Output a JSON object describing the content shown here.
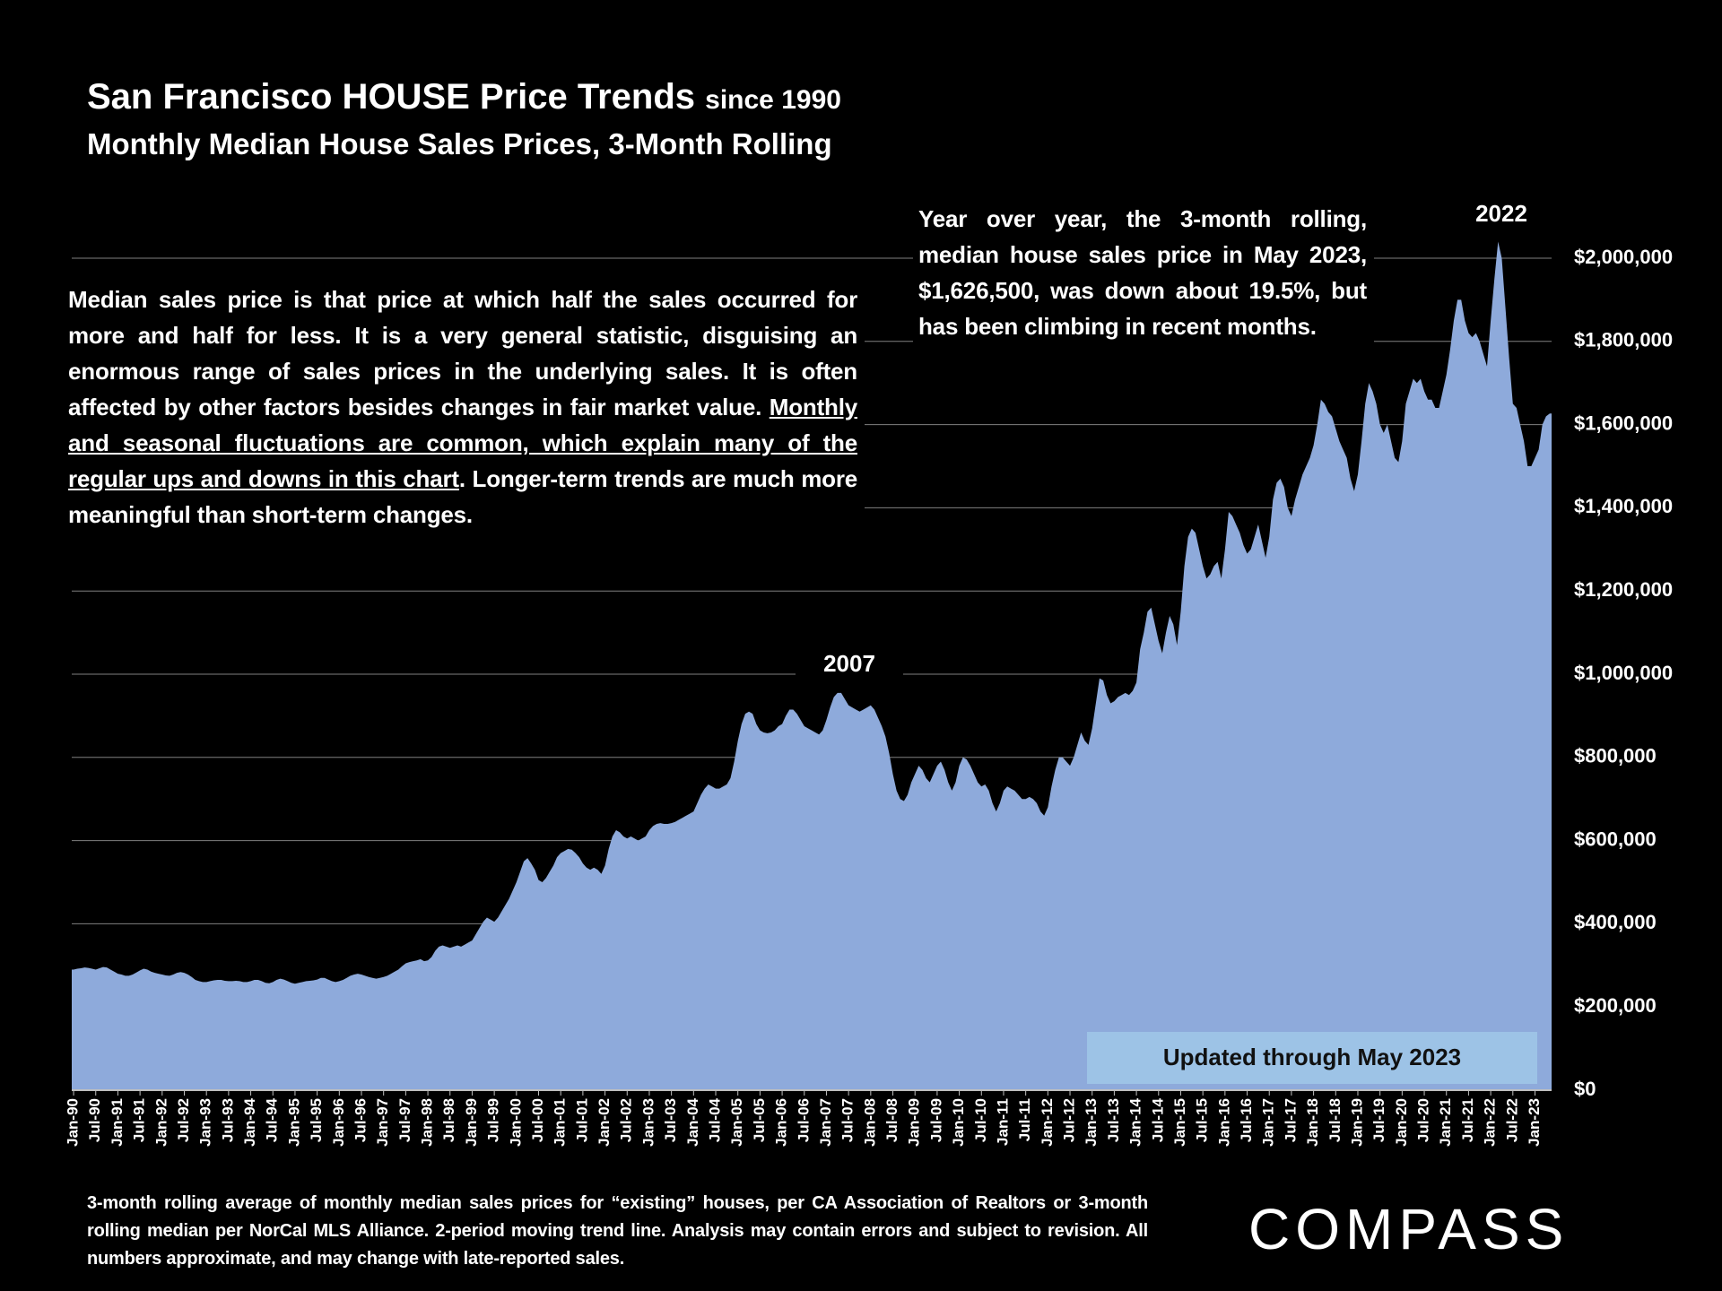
{
  "chart_data": {
    "type": "area",
    "title": "San Francisco HOUSE Price Trends",
    "title_suffix": "since 1990",
    "subtitle": "Monthly Median House Sales Prices, 3-Month Rolling",
    "color": "#8eaadb",
    "grid": true,
    "ylim": [
      0,
      2100000
    ],
    "yticks": [
      {
        "value": 0,
        "label": "$0"
      },
      {
        "value": 200000,
        "label": "$200,000"
      },
      {
        "value": 400000,
        "label": "$400,000"
      },
      {
        "value": 600000,
        "label": "$600,000"
      },
      {
        "value": 800000,
        "label": "$800,000"
      },
      {
        "value": 1000000,
        "label": "$1,000,000"
      },
      {
        "value": 1200000,
        "label": "$1,200,000"
      },
      {
        "value": 1400000,
        "label": "$1,400,000"
      },
      {
        "value": 1600000,
        "label": "$1,600,000"
      },
      {
        "value": 1800000,
        "label": "$1,800,000"
      },
      {
        "value": 2000000,
        "label": "$2,000,000"
      }
    ],
    "categories": [
      "Jan-90",
      null,
      null,
      null,
      null,
      null,
      "Jul-90",
      null,
      null,
      null,
      null,
      null,
      "Jan-91",
      null,
      null,
      null,
      null,
      null,
      "Jul-91",
      null,
      null,
      null,
      null,
      null,
      "Jan-92",
      null,
      null,
      null,
      null,
      null,
      "Jul-92",
      null,
      null,
      null,
      null,
      null,
      "Jan-93",
      null,
      null,
      null,
      null,
      null,
      "Jul-93",
      null,
      null,
      null,
      null,
      null,
      "Jan-94",
      null,
      null,
      null,
      null,
      null,
      "Jul-94",
      null,
      null,
      null,
      null,
      null,
      "Jan-95",
      null,
      null,
      null,
      null,
      null,
      "Jul-95",
      null,
      null,
      null,
      null,
      null,
      "Jan-96",
      null,
      null,
      null,
      null,
      null,
      "Jul-96",
      null,
      null,
      null,
      null,
      null,
      "Jan-97",
      null,
      null,
      null,
      null,
      null,
      "Jul-97",
      null,
      null,
      null,
      null,
      null,
      "Jan-98",
      null,
      null,
      null,
      null,
      null,
      "Jul-98",
      null,
      null,
      null,
      null,
      null,
      "Jan-99",
      null,
      null,
      null,
      null,
      null,
      "Jul-99",
      null,
      null,
      null,
      null,
      null,
      "Jan-00",
      null,
      null,
      null,
      null,
      null,
      "Jul-00",
      null,
      null,
      null,
      null,
      null,
      "Jan-01",
      null,
      null,
      null,
      null,
      null,
      "Jul-01",
      null,
      null,
      null,
      null,
      null,
      "Jan-02",
      null,
      null,
      null,
      null,
      null,
      "Jul-02",
      null,
      null,
      null,
      null,
      null,
      "Jan-03",
      null,
      null,
      null,
      null,
      null,
      "Jul-03",
      null,
      null,
      null,
      null,
      null,
      "Jan-04",
      null,
      null,
      null,
      null,
      null,
      "Jul-04",
      null,
      null,
      null,
      null,
      null,
      "Jan-05",
      null,
      null,
      null,
      null,
      null,
      "Jul-05",
      null,
      null,
      null,
      null,
      null,
      "Jan-06",
      null,
      null,
      null,
      null,
      null,
      "Jul-06",
      null,
      null,
      null,
      null,
      null,
      "Jan-07",
      null,
      null,
      null,
      null,
      null,
      "Jul-07",
      null,
      null,
      null,
      null,
      null,
      "Jan-08",
      null,
      null,
      null,
      null,
      null,
      "Jul-08",
      null,
      null,
      null,
      null,
      null,
      "Jan-09",
      null,
      null,
      null,
      null,
      null,
      "Jul-09",
      null,
      null,
      null,
      null,
      null,
      "Jan-10",
      null,
      null,
      null,
      null,
      null,
      "Jul-10",
      null,
      null,
      null,
      null,
      null,
      "Jan-11",
      null,
      null,
      null,
      null,
      null,
      "Jul-11",
      null,
      null,
      null,
      null,
      null,
      "Jan-12",
      null,
      null,
      null,
      null,
      null,
      "Jul-12",
      null,
      null,
      null,
      null,
      null,
      "Jan-13",
      null,
      null,
      null,
      null,
      null,
      "Jul-13",
      null,
      null,
      null,
      null,
      null,
      "Jan-14",
      null,
      null,
      null,
      null,
      null,
      "Jul-14",
      null,
      null,
      null,
      null,
      null,
      "Jan-15",
      null,
      null,
      null,
      null,
      null,
      "Jul-15",
      null,
      null,
      null,
      null,
      null,
      "Jan-16",
      null,
      null,
      null,
      null,
      null,
      "Jul-16",
      null,
      null,
      null,
      null,
      null,
      "Jan-17",
      null,
      null,
      null,
      null,
      null,
      "Jul-17",
      null,
      null,
      null,
      null,
      null,
      "Jan-18",
      null,
      null,
      null,
      null,
      null,
      "Jul-18",
      null,
      null,
      null,
      null,
      null,
      "Jan-19",
      null,
      null,
      null,
      null,
      null,
      "Jul-19",
      null,
      null,
      null,
      null,
      null,
      "Jan-20",
      null,
      null,
      null,
      null,
      null,
      "Jul-20",
      null,
      null,
      null,
      null,
      null,
      "Jan-21",
      null,
      null,
      null,
      null,
      null,
      "Jul-21",
      null,
      null,
      null,
      null,
      null,
      "Jan-22",
      null,
      null,
      null,
      null,
      null,
      "Jul-22",
      null,
      null,
      null,
      null,
      null,
      "Jan-23",
      null,
      null,
      null,
      null
    ],
    "values": [
      290000,
      292000,
      293000,
      295000,
      294000,
      292000,
      290000,
      293000,
      296000,
      295000,
      290000,
      285000,
      280000,
      278000,
      275000,
      275000,
      278000,
      283000,
      288000,
      292000,
      290000,
      285000,
      282000,
      280000,
      278000,
      276000,
      275000,
      278000,
      282000,
      284000,
      282000,
      278000,
      272000,
      265000,
      262000,
      260000,
      260000,
      262000,
      264000,
      265000,
      265000,
      263000,
      262000,
      262000,
      263000,
      262000,
      260000,
      260000,
      262000,
      265000,
      265000,
      262000,
      258000,
      257000,
      260000,
      265000,
      268000,
      266000,
      262000,
      258000,
      256000,
      258000,
      260000,
      262000,
      263000,
      264000,
      266000,
      270000,
      270000,
      266000,
      262000,
      260000,
      262000,
      265000,
      270000,
      275000,
      278000,
      280000,
      278000,
      275000,
      272000,
      270000,
      268000,
      270000,
      272000,
      275000,
      280000,
      285000,
      290000,
      298000,
      305000,
      308000,
      310000,
      312000,
      315000,
      310000,
      312000,
      320000,
      335000,
      345000,
      348000,
      345000,
      342000,
      345000,
      348000,
      345000,
      350000,
      355000,
      360000,
      375000,
      390000,
      405000,
      415000,
      410000,
      405000,
      415000,
      430000,
      445000,
      460000,
      480000,
      500000,
      525000,
      550000,
      558000,
      545000,
      530000,
      505000,
      500000,
      510000,
      525000,
      540000,
      560000,
      570000,
      575000,
      580000,
      578000,
      570000,
      560000,
      545000,
      535000,
      530000,
      535000,
      530000,
      520000,
      540000,
      580000,
      610000,
      625000,
      620000,
      610000,
      605000,
      610000,
      605000,
      600000,
      605000,
      610000,
      625000,
      635000,
      640000,
      642000,
      640000,
      640000,
      642000,
      645000,
      650000,
      655000,
      660000,
      665000,
      670000,
      690000,
      710000,
      725000,
      735000,
      730000,
      725000,
      725000,
      730000,
      735000,
      750000,
      790000,
      840000,
      880000,
      905000,
      910000,
      905000,
      880000,
      865000,
      860000,
      858000,
      860000,
      865000,
      875000,
      880000,
      900000,
      915000,
      915000,
      905000,
      890000,
      875000,
      870000,
      865000,
      860000,
      855000,
      865000,
      890000,
      920000,
      945000,
      955000,
      955000,
      940000,
      925000,
      920000,
      915000,
      910000,
      915000,
      920000,
      925000,
      915000,
      895000,
      875000,
      850000,
      810000,
      760000,
      720000,
      700000,
      695000,
      710000,
      740000,
      760000,
      780000,
      770000,
      750000,
      740000,
      760000,
      780000,
      790000,
      770000,
      740000,
      720000,
      740000,
      780000,
      800000,
      795000,
      780000,
      760000,
      740000,
      730000,
      735000,
      720000,
      690000,
      670000,
      690000,
      720000,
      730000,
      725000,
      720000,
      710000,
      700000,
      700000,
      705000,
      700000,
      690000,
      670000,
      660000,
      680000,
      730000,
      770000,
      800000,
      800000,
      790000,
      780000,
      800000,
      830000,
      860000,
      840000,
      830000,
      870000,
      930000,
      990000,
      985000,
      950000,
      930000,
      935000,
      945000,
      950000,
      955000,
      950000,
      960000,
      980000,
      1060000,
      1100000,
      1150000,
      1160000,
      1120000,
      1080000,
      1050000,
      1100000,
      1140000,
      1120000,
      1070000,
      1150000,
      1260000,
      1330000,
      1350000,
      1340000,
      1300000,
      1260000,
      1230000,
      1240000,
      1260000,
      1270000,
      1230000,
      1300000,
      1390000,
      1380000,
      1360000,
      1340000,
      1310000,
      1290000,
      1300000,
      1330000,
      1360000,
      1320000,
      1280000,
      1330000,
      1420000,
      1460000,
      1470000,
      1450000,
      1400000,
      1380000,
      1420000,
      1450000,
      1480000,
      1500000,
      1520000,
      1550000,
      1600000,
      1660000,
      1650000,
      1630000,
      1620000,
      1590000,
      1560000,
      1540000,
      1520000,
      1470000,
      1440000,
      1480000,
      1560000,
      1650000,
      1700000,
      1680000,
      1650000,
      1600000,
      1580000,
      1600000,
      1560000,
      1520000,
      1510000,
      1560000,
      1650000,
      1680000,
      1710000,
      1700000,
      1710000,
      1680000,
      1660000,
      1660000,
      1640000,
      1640000,
      1680000,
      1720000,
      1780000,
      1850000,
      1900000,
      1900000,
      1850000,
      1820000,
      1810000,
      1820000,
      1800000,
      1770000,
      1740000,
      1850000,
      1950000,
      2040000,
      2000000,
      1880000,
      1760000,
      1650000,
      1640000,
      1600000,
      1560000,
      1500000,
      1500000,
      1520000,
      1540000,
      1600000,
      1620000,
      1626500
    ],
    "annotations": [
      "2007",
      "2022"
    ],
    "left_note": {
      "before": "Median sales price is that price at which half the sales occurred for more and half for less. It is a very general statistic, disguising an enormous range of sales prices in the underlying sales. It is often affected by other factors besides changes in fair market value. ",
      "underlined": "Monthly and seasonal fluctuations are common, which explain many of the regular ups and downs in this chart",
      "after": ". Longer-term trends are much more meaningful than short-term changes."
    },
    "right_note": "Year over year, the 3-month rolling, median house sales price in May 2023, $1,626,500, was down about 19.5%, but has been climbing in recent months.",
    "updated": "Updated through May 2023",
    "footnote": "3-month rolling average of monthly median sales prices for “existing” houses, per CA Association of Realtors or 3-month rolling median per NorCal MLS Alliance. 2-period moving trend line. Analysis may contain errors and subject to revision. All numbers approximate, and may change with late-reported sales.",
    "logo": "COMPASS"
  }
}
